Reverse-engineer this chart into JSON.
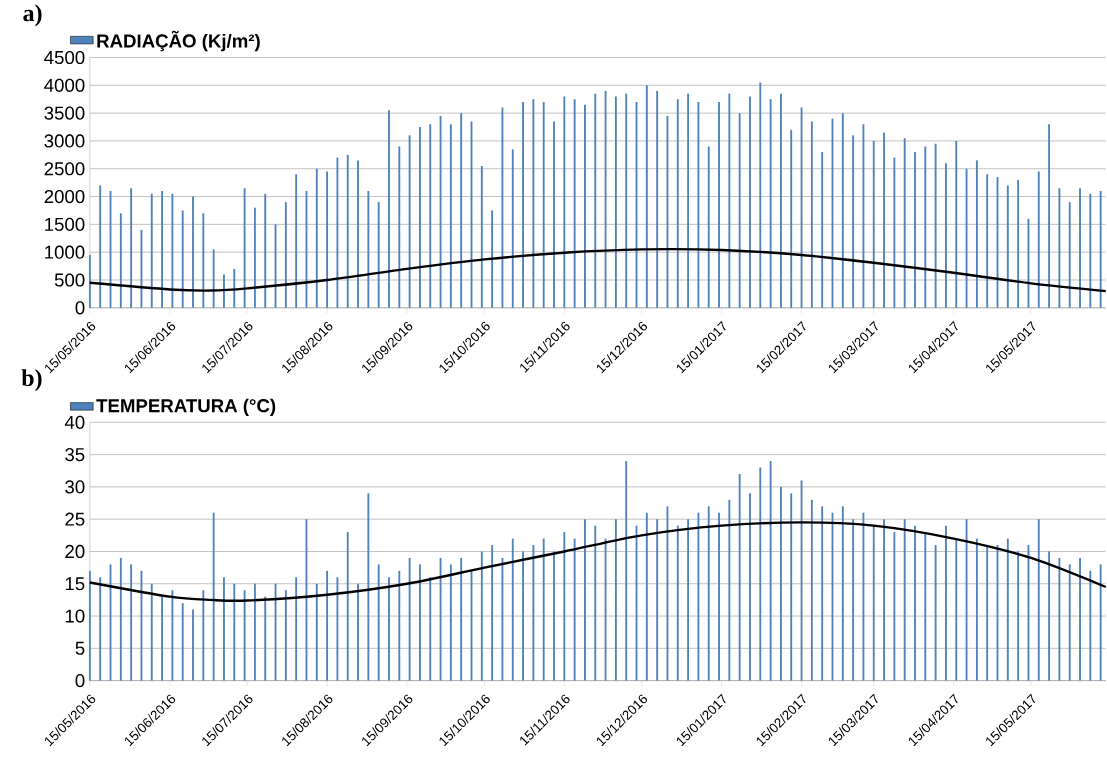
{
  "chart_data": [
    {
      "type": "bar",
      "title": "a)",
      "grid": "y",
      "legend": "top left",
      "x": [
        "2016-05-15",
        "2016-05-19",
        "2016-05-23",
        "2016-05-27",
        "2016-05-31",
        "2016-06-04",
        "2016-06-08",
        "2016-06-12",
        "2016-06-16",
        "2016-06-20",
        "2016-06-24",
        "2016-06-28",
        "2016-07-02",
        "2016-07-06",
        "2016-07-10",
        "2016-07-14",
        "2016-07-18",
        "2016-07-22",
        "2016-07-26",
        "2016-07-30",
        "2016-08-03",
        "2016-08-07",
        "2016-08-11",
        "2016-08-15",
        "2016-08-19",
        "2016-08-23",
        "2016-08-27",
        "2016-08-31",
        "2016-09-04",
        "2016-09-08",
        "2016-09-12",
        "2016-09-16",
        "2016-09-20",
        "2016-09-24",
        "2016-09-28",
        "2016-10-02",
        "2016-10-06",
        "2016-10-10",
        "2016-10-14",
        "2016-10-18",
        "2016-10-22",
        "2016-10-26",
        "2016-10-30",
        "2016-11-03",
        "2016-11-07",
        "2016-11-11",
        "2016-11-15",
        "2016-11-19",
        "2016-11-23",
        "2016-11-27",
        "2016-12-01",
        "2016-12-05",
        "2016-12-09",
        "2016-12-13",
        "2016-12-17",
        "2016-12-21",
        "2016-12-25",
        "2016-12-29",
        "2017-01-02",
        "2017-01-06",
        "2017-01-10",
        "2017-01-14",
        "2017-01-18",
        "2017-01-22",
        "2017-01-26",
        "2017-01-30",
        "2017-02-03",
        "2017-02-07",
        "2017-02-11",
        "2017-02-15",
        "2017-02-19",
        "2017-02-23",
        "2017-02-27",
        "2017-03-03",
        "2017-03-07",
        "2017-03-11",
        "2017-03-15",
        "2017-03-19",
        "2017-03-23",
        "2017-03-27",
        "2017-03-31",
        "2017-04-04",
        "2017-04-08",
        "2017-04-12",
        "2017-04-16",
        "2017-04-20",
        "2017-04-24",
        "2017-04-28",
        "2017-05-02",
        "2017-05-06",
        "2017-05-10",
        "2017-05-14",
        "2017-05-18",
        "2017-05-22",
        "2017-05-26",
        "2017-05-30",
        "2017-06-03",
        "2017-06-07",
        "2017-06-11"
      ],
      "xlim": [
        "2016-05-15",
        "2017-06-13"
      ],
      "xticks": [
        {
          "value": "2016-05-15",
          "label": "15/05/2016"
        },
        {
          "value": "2016-06-15",
          "label": "15/06/2016"
        },
        {
          "value": "2016-07-15",
          "label": "15/07/2016"
        },
        {
          "value": "2016-08-15",
          "label": "15/08/2016"
        },
        {
          "value": "2016-09-15",
          "label": "15/09/2016"
        },
        {
          "value": "2016-10-15",
          "label": "15/10/2016"
        },
        {
          "value": "2016-11-15",
          "label": "15/11/2016"
        },
        {
          "value": "2016-12-15",
          "label": "15/12/2016"
        },
        {
          "value": "2017-01-15",
          "label": "15/01/2017"
        },
        {
          "value": "2017-02-15",
          "label": "15/02/2017"
        },
        {
          "value": "2017-03-15",
          "label": "15/03/2017"
        },
        {
          "value": "2017-04-15",
          "label": "15/04/2017"
        },
        {
          "value": "2017-05-15",
          "label": "15/05/2017"
        }
      ],
      "ylim": [
        0,
        4500
      ],
      "yticks": [
        0,
        500,
        1000,
        1500,
        2000,
        2500,
        3000,
        3500,
        4000,
        4500
      ],
      "series": [
        {
          "name": "RADIAÇÃO (Kj/m²)",
          "color": "#4f81bd",
          "values": [
            950,
            2200,
            2100,
            1700,
            2150,
            1400,
            2050,
            2100,
            2050,
            1750,
            2000,
            1700,
            1050,
            600,
            700,
            2150,
            1800,
            2050,
            1500,
            1900,
            2400,
            2100,
            2500,
            2450,
            2700,
            2750,
            2650,
            2100,
            1900,
            3550,
            2900,
            3100,
            3250,
            3300,
            3450,
            3300,
            3500,
            3350,
            2550,
            1750,
            3600,
            2850,
            3700,
            3750,
            3700,
            3350,
            3800,
            3750,
            3650,
            3850,
            3900,
            3800,
            3850,
            3700,
            4000,
            3900,
            3450,
            3750,
            3850,
            3700,
            2900,
            3700,
            3850,
            3500,
            3800,
            4050,
            3750,
            3850,
            3200,
            3600,
            3350,
            2800,
            3400,
            3500,
            3100,
            3300,
            3000,
            3150,
            2700,
            3050,
            2800,
            2900,
            2950,
            2600,
            3000,
            2500,
            2650,
            2400,
            2350,
            2200,
            2300,
            1600,
            2450,
            3300,
            2150,
            1900,
            2150,
            2050,
            2100
          ]
        },
        {
          "type": "line",
          "color": "#000000",
          "x": [
            "2016-05-15",
            "2016-06-15",
            "2016-07-01",
            "2016-07-15",
            "2016-08-15",
            "2016-09-15",
            "2016-10-15",
            "2016-11-15",
            "2016-12-15",
            "2017-01-15",
            "2017-02-15",
            "2017-03-15",
            "2017-04-15",
            "2017-05-15",
            "2017-06-13"
          ],
          "values": [
            450,
            330,
            310,
            350,
            500,
            700,
            870,
            990,
            1050,
            1040,
            950,
            810,
            630,
            440,
            300
          ]
        }
      ]
    },
    {
      "type": "bar",
      "title": "b)",
      "grid": "y",
      "legend": "top left",
      "x": [
        "2016-05-15",
        "2016-05-19",
        "2016-05-23",
        "2016-05-27",
        "2016-05-31",
        "2016-06-04",
        "2016-06-08",
        "2016-06-12",
        "2016-06-16",
        "2016-06-20",
        "2016-06-24",
        "2016-06-28",
        "2016-07-02",
        "2016-07-06",
        "2016-07-10",
        "2016-07-14",
        "2016-07-18",
        "2016-07-22",
        "2016-07-26",
        "2016-07-30",
        "2016-08-03",
        "2016-08-07",
        "2016-08-11",
        "2016-08-15",
        "2016-08-19",
        "2016-08-23",
        "2016-08-27",
        "2016-08-31",
        "2016-09-04",
        "2016-09-08",
        "2016-09-12",
        "2016-09-16",
        "2016-09-20",
        "2016-09-24",
        "2016-09-28",
        "2016-10-02",
        "2016-10-06",
        "2016-10-10",
        "2016-10-14",
        "2016-10-18",
        "2016-10-22",
        "2016-10-26",
        "2016-10-30",
        "2016-11-03",
        "2016-11-07",
        "2016-11-11",
        "2016-11-15",
        "2016-11-19",
        "2016-11-23",
        "2016-11-27",
        "2016-12-01",
        "2016-12-05",
        "2016-12-09",
        "2016-12-13",
        "2016-12-17",
        "2016-12-21",
        "2016-12-25",
        "2016-12-29",
        "2017-01-02",
        "2017-01-06",
        "2017-01-10",
        "2017-01-14",
        "2017-01-18",
        "2017-01-22",
        "2017-01-26",
        "2017-01-30",
        "2017-02-03",
        "2017-02-07",
        "2017-02-11",
        "2017-02-15",
        "2017-02-19",
        "2017-02-23",
        "2017-02-27",
        "2017-03-03",
        "2017-03-07",
        "2017-03-11",
        "2017-03-15",
        "2017-03-19",
        "2017-03-23",
        "2017-03-27",
        "2017-03-31",
        "2017-04-04",
        "2017-04-08",
        "2017-04-12",
        "2017-04-16",
        "2017-04-20",
        "2017-04-24",
        "2017-04-28",
        "2017-05-02",
        "2017-05-06",
        "2017-05-10",
        "2017-05-14",
        "2017-05-18",
        "2017-05-22",
        "2017-05-26",
        "2017-05-30",
        "2017-06-03",
        "2017-06-07",
        "2017-06-11"
      ],
      "xlim": [
        "2016-05-15",
        "2017-06-13"
      ],
      "xticks": [
        {
          "value": "2016-05-15",
          "label": "15/05/2016"
        },
        {
          "value": "2016-06-15",
          "label": "15/06/2016"
        },
        {
          "value": "2016-07-15",
          "label": "15/07/2016"
        },
        {
          "value": "2016-08-15",
          "label": "15/08/2016"
        },
        {
          "value": "2016-09-15",
          "label": "15/09/2016"
        },
        {
          "value": "2016-10-15",
          "label": "15/10/2016"
        },
        {
          "value": "2016-11-15",
          "label": "15/11/2016"
        },
        {
          "value": "2016-12-15",
          "label": "15/12/2016"
        },
        {
          "value": "2017-01-15",
          "label": "15/01/2017"
        },
        {
          "value": "2017-02-15",
          "label": "15/02/2017"
        },
        {
          "value": "2017-03-15",
          "label": "15/03/2017"
        },
        {
          "value": "2017-04-15",
          "label": "15/04/2017"
        },
        {
          "value": "2017-05-15",
          "label": "15/05/2017"
        }
      ],
      "ylim": [
        0,
        40
      ],
      "yticks": [
        0,
        5,
        10,
        15,
        20,
        25,
        30,
        35,
        40
      ],
      "series": [
        {
          "name": "TEMPERATURA (°C)",
          "color": "#4f81bd",
          "values": [
            17,
            16,
            18,
            19,
            18,
            17,
            15,
            13,
            14,
            12,
            11,
            14,
            26,
            16,
            15,
            14,
            15,
            13,
            15,
            14,
            16,
            25,
            15,
            17,
            16,
            23,
            15,
            29,
            18,
            16,
            17,
            19,
            18,
            16,
            19,
            18,
            19,
            17,
            20,
            21,
            19,
            22,
            20,
            21,
            22,
            20,
            23,
            22,
            25,
            24,
            22,
            25,
            34,
            24,
            26,
            25,
            27,
            24,
            25,
            26,
            27,
            26,
            28,
            32,
            29,
            33,
            34,
            30,
            29,
            31,
            28,
            27,
            26,
            27,
            25,
            26,
            24,
            25,
            23,
            25,
            24,
            23,
            21,
            24,
            22,
            25,
            22,
            21,
            21,
            22,
            20,
            21,
            25,
            20,
            19,
            18,
            19,
            17,
            18
          ]
        },
        {
          "type": "line",
          "color": "#000000",
          "x": [
            "2016-05-15",
            "2016-06-15",
            "2016-07-01",
            "2016-07-15",
            "2016-08-15",
            "2016-09-15",
            "2016-10-15",
            "2016-11-15",
            "2016-12-15",
            "2017-01-15",
            "2017-02-15",
            "2017-03-15",
            "2017-04-15",
            "2017-05-15",
            "2017-06-13"
          ],
          "values": [
            15.2,
            13,
            12.5,
            12.4,
            13.3,
            15,
            17.5,
            20,
            22.5,
            24,
            24.5,
            24,
            22,
            19,
            14.5
          ]
        }
      ]
    }
  ]
}
